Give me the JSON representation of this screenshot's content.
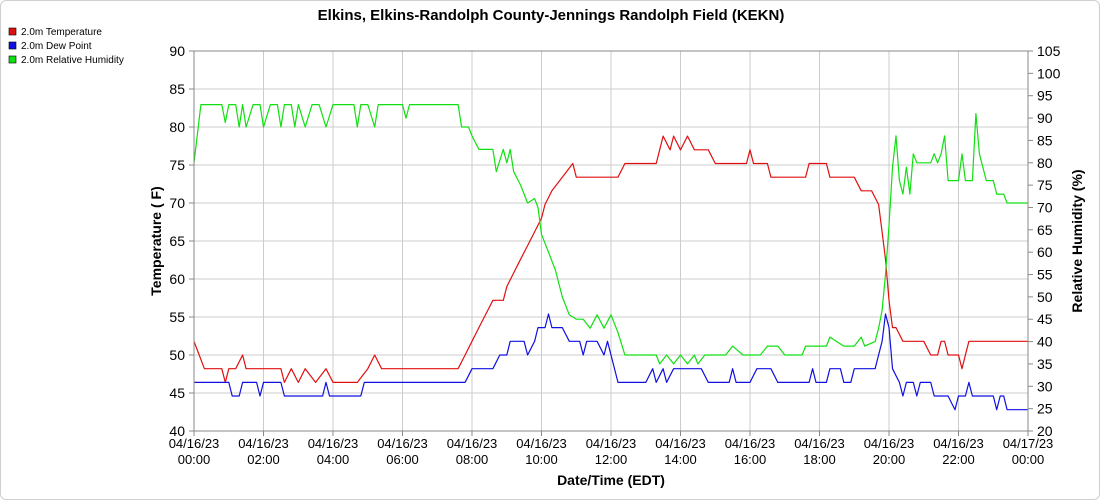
{
  "chart_data": {
    "type": "line",
    "title": "Elkins, Elkins-Randolph County-Jennings Randolph Field (KEKN)",
    "xlabel": "Date/Time (EDT)",
    "ylabel_left": "Temperature ( F)",
    "ylabel_right": "Relative Humidity (%)",
    "x_range_hours": [
      0,
      24
    ],
    "ylim_left": [
      40,
      90
    ],
    "ylim_right": [
      20,
      105
    ],
    "left_ticks": [
      40,
      45,
      50,
      55,
      60,
      65,
      70,
      75,
      80,
      85,
      90
    ],
    "right_ticks": [
      20,
      25,
      30,
      35,
      40,
      45,
      50,
      55,
      60,
      65,
      70,
      75,
      80,
      85,
      90,
      95,
      100,
      105
    ],
    "x_ticks": [
      {
        "hour": 0,
        "date": "04/16/23",
        "time": "00:00"
      },
      {
        "hour": 2,
        "date": "04/16/23",
        "time": "02:00"
      },
      {
        "hour": 4,
        "date": "04/16/23",
        "time": "04:00"
      },
      {
        "hour": 6,
        "date": "04/16/23",
        "time": "06:00"
      },
      {
        "hour": 8,
        "date": "04/16/23",
        "time": "08:00"
      },
      {
        "hour": 10,
        "date": "04/16/23",
        "time": "10:00"
      },
      {
        "hour": 12,
        "date": "04/16/23",
        "time": "12:00"
      },
      {
        "hour": 14,
        "date": "04/16/23",
        "time": "14:00"
      },
      {
        "hour": 16,
        "date": "04/16/23",
        "time": "16:00"
      },
      {
        "hour": 18,
        "date": "04/16/23",
        "time": "18:00"
      },
      {
        "hour": 20,
        "date": "04/16/23",
        "time": "20:00"
      },
      {
        "hour": 22,
        "date": "04/16/23",
        "time": "22:00"
      },
      {
        "hour": 24,
        "date": "04/17/23",
        "time": "00:00"
      }
    ],
    "grid": true,
    "legend_position": "top-left",
    "series": [
      {
        "name": "2.0m Temperature",
        "color": "#e01010",
        "axis": "left",
        "points": [
          [
            0,
            51.8
          ],
          [
            0.15,
            50
          ],
          [
            0.3,
            48.2
          ],
          [
            0.8,
            48.2
          ],
          [
            0.9,
            46.4
          ],
          [
            1.0,
            48.2
          ],
          [
            1.2,
            48.2
          ],
          [
            1.4,
            50
          ],
          [
            1.5,
            48.2
          ],
          [
            2.5,
            48.2
          ],
          [
            2.6,
            46.4
          ],
          [
            2.8,
            48.2
          ],
          [
            3.0,
            46.4
          ],
          [
            3.2,
            48.2
          ],
          [
            3.5,
            46.4
          ],
          [
            3.8,
            48.2
          ],
          [
            4.0,
            46.4
          ],
          [
            4.7,
            46.4
          ],
          [
            5.0,
            48.2
          ],
          [
            5.2,
            50
          ],
          [
            5.4,
            48.2
          ],
          [
            7.6,
            48.2
          ],
          [
            7.8,
            50
          ],
          [
            8.0,
            51.8
          ],
          [
            8.2,
            53.6
          ],
          [
            8.4,
            55.4
          ],
          [
            8.6,
            57.2
          ],
          [
            8.9,
            57.2
          ],
          [
            9.0,
            59
          ],
          [
            9.2,
            60.8
          ],
          [
            9.4,
            62.6
          ],
          [
            9.6,
            64.4
          ],
          [
            9.8,
            66.2
          ],
          [
            10.0,
            68
          ],
          [
            10.1,
            69.8
          ],
          [
            10.3,
            71.6
          ],
          [
            10.6,
            73.4
          ],
          [
            10.9,
            75.2
          ],
          [
            11.0,
            73.4
          ],
          [
            12.2,
            73.4
          ],
          [
            12.4,
            75.2
          ],
          [
            13.3,
            75.2
          ],
          [
            13.4,
            77
          ],
          [
            13.5,
            78.8
          ],
          [
            13.7,
            77
          ],
          [
            13.8,
            78.8
          ],
          [
            14.0,
            77
          ],
          [
            14.2,
            78.8
          ],
          [
            14.4,
            77
          ],
          [
            14.8,
            77
          ],
          [
            15.0,
            75.2
          ],
          [
            15.9,
            75.2
          ],
          [
            16.0,
            77
          ],
          [
            16.1,
            75.2
          ],
          [
            16.5,
            75.2
          ],
          [
            16.6,
            73.4
          ],
          [
            17.0,
            73.4
          ],
          [
            17.6,
            73.4
          ],
          [
            17.7,
            75.2
          ],
          [
            18.2,
            75.2
          ],
          [
            18.3,
            73.4
          ],
          [
            19.0,
            73.4
          ],
          [
            19.2,
            71.6
          ],
          [
            19.5,
            71.6
          ],
          [
            19.7,
            69.8
          ],
          [
            19.8,
            66.2
          ],
          [
            19.9,
            62.6
          ],
          [
            20.0,
            57.2
          ],
          [
            20.1,
            53.6
          ],
          [
            20.2,
            53.6
          ],
          [
            20.4,
            51.8
          ],
          [
            21.0,
            51.8
          ],
          [
            21.2,
            50
          ],
          [
            21.4,
            50
          ],
          [
            21.5,
            51.8
          ],
          [
            21.6,
            51.8
          ],
          [
            21.7,
            50
          ],
          [
            22.0,
            50
          ],
          [
            22.1,
            48.2
          ],
          [
            22.2,
            50
          ],
          [
            22.3,
            51.8
          ],
          [
            24,
            51.8
          ]
        ]
      },
      {
        "name": "2.0m Dew Point",
        "color": "#1010e0",
        "axis": "left",
        "points": [
          [
            0,
            46.4
          ],
          [
            1.0,
            46.4
          ],
          [
            1.1,
            44.6
          ],
          [
            1.3,
            44.6
          ],
          [
            1.4,
            46.4
          ],
          [
            1.8,
            46.4
          ],
          [
            1.9,
            44.6
          ],
          [
            2.0,
            46.4
          ],
          [
            2.5,
            46.4
          ],
          [
            2.6,
            44.6
          ],
          [
            3.2,
            44.6
          ],
          [
            3.7,
            44.6
          ],
          [
            3.8,
            46.4
          ],
          [
            3.9,
            44.6
          ],
          [
            4.8,
            44.6
          ],
          [
            4.9,
            46.4
          ],
          [
            7.8,
            46.4
          ],
          [
            8.0,
            48.2
          ],
          [
            8.6,
            48.2
          ],
          [
            8.8,
            50
          ],
          [
            9.0,
            50
          ],
          [
            9.1,
            51.8
          ],
          [
            9.5,
            51.8
          ],
          [
            9.6,
            50
          ],
          [
            9.8,
            51.8
          ],
          [
            9.9,
            53.6
          ],
          [
            10.1,
            53.6
          ],
          [
            10.2,
            55.4
          ],
          [
            10.3,
            53.6
          ],
          [
            10.6,
            53.6
          ],
          [
            10.8,
            51.8
          ],
          [
            11.1,
            51.8
          ],
          [
            11.2,
            50
          ],
          [
            11.3,
            51.8
          ],
          [
            11.6,
            51.8
          ],
          [
            11.8,
            50
          ],
          [
            11.9,
            51.8
          ],
          [
            12.0,
            50
          ],
          [
            12.2,
            46.4
          ],
          [
            13.0,
            46.4
          ],
          [
            13.2,
            48.2
          ],
          [
            13.3,
            46.4
          ],
          [
            13.5,
            48.2
          ],
          [
            13.6,
            46.4
          ],
          [
            13.8,
            48.2
          ],
          [
            14.6,
            48.2
          ],
          [
            14.8,
            46.4
          ],
          [
            15.4,
            46.4
          ],
          [
            15.5,
            48.2
          ],
          [
            15.6,
            46.4
          ],
          [
            16.0,
            46.4
          ],
          [
            16.2,
            48.2
          ],
          [
            16.6,
            48.2
          ],
          [
            16.8,
            46.4
          ],
          [
            17.7,
            46.4
          ],
          [
            17.8,
            48.2
          ],
          [
            17.9,
            46.4
          ],
          [
            18.2,
            46.4
          ],
          [
            18.3,
            48.2
          ],
          [
            18.6,
            48.2
          ],
          [
            18.7,
            46.4
          ],
          [
            18.9,
            46.4
          ],
          [
            19.0,
            48.2
          ],
          [
            19.6,
            48.2
          ],
          [
            19.7,
            50
          ],
          [
            19.8,
            51.8
          ],
          [
            19.9,
            55.4
          ],
          [
            20.0,
            53.6
          ],
          [
            20.1,
            48.2
          ],
          [
            20.3,
            46.4
          ],
          [
            20.4,
            44.6
          ],
          [
            20.5,
            46.4
          ],
          [
            20.7,
            46.4
          ],
          [
            20.8,
            44.6
          ],
          [
            20.9,
            46.4
          ],
          [
            21.2,
            46.4
          ],
          [
            21.3,
            44.6
          ],
          [
            21.7,
            44.6
          ],
          [
            21.8,
            43.7
          ],
          [
            21.9,
            42.8
          ],
          [
            22.0,
            44.6
          ],
          [
            22.2,
            44.6
          ],
          [
            22.3,
            46.4
          ],
          [
            22.4,
            44.6
          ],
          [
            22.6,
            44.6
          ],
          [
            22.8,
            44.6
          ],
          [
            23.0,
            44.6
          ],
          [
            23.1,
            42.8
          ],
          [
            23.2,
            44.6
          ],
          [
            23.3,
            44.6
          ],
          [
            23.4,
            42.8
          ],
          [
            24,
            42.8
          ]
        ]
      },
      {
        "name": "2.0m Relative Humidity",
        "color": "#10e010",
        "axis": "right",
        "points": [
          [
            0,
            80
          ],
          [
            0.2,
            93
          ],
          [
            0.8,
            93
          ],
          [
            0.9,
            89
          ],
          [
            1.0,
            93
          ],
          [
            1.2,
            93
          ],
          [
            1.3,
            88
          ],
          [
            1.4,
            93
          ],
          [
            1.5,
            88
          ],
          [
            1.7,
            93
          ],
          [
            1.9,
            93
          ],
          [
            2.0,
            88
          ],
          [
            2.2,
            93
          ],
          [
            2.4,
            93
          ],
          [
            2.5,
            88
          ],
          [
            2.6,
            93
          ],
          [
            2.8,
            93
          ],
          [
            2.9,
            88
          ],
          [
            3.0,
            93
          ],
          [
            3.2,
            88
          ],
          [
            3.4,
            93
          ],
          [
            3.6,
            93
          ],
          [
            3.8,
            88
          ],
          [
            4.0,
            93
          ],
          [
            4.6,
            93
          ],
          [
            4.7,
            88
          ],
          [
            4.8,
            93
          ],
          [
            5.0,
            93
          ],
          [
            5.2,
            88
          ],
          [
            5.3,
            93
          ],
          [
            6.0,
            93
          ],
          [
            6.1,
            90
          ],
          [
            6.2,
            93
          ],
          [
            7.6,
            93
          ],
          [
            7.7,
            88
          ],
          [
            7.9,
            88
          ],
          [
            8.0,
            86
          ],
          [
            8.2,
            83
          ],
          [
            8.4,
            83
          ],
          [
            8.6,
            83
          ],
          [
            8.7,
            78
          ],
          [
            8.9,
            83
          ],
          [
            9.0,
            80
          ],
          [
            9.1,
            83
          ],
          [
            9.2,
            78
          ],
          [
            9.4,
            75
          ],
          [
            9.6,
            71
          ],
          [
            9.8,
            72
          ],
          [
            9.9,
            70
          ],
          [
            10.0,
            64
          ],
          [
            10.2,
            60
          ],
          [
            10.4,
            56
          ],
          [
            10.6,
            50
          ],
          [
            10.8,
            46
          ],
          [
            11.0,
            45
          ],
          [
            11.2,
            45
          ],
          [
            11.4,
            43
          ],
          [
            11.6,
            46
          ],
          [
            11.8,
            43
          ],
          [
            12.0,
            46
          ],
          [
            12.2,
            42
          ],
          [
            12.4,
            37
          ],
          [
            13.3,
            37
          ],
          [
            13.4,
            35
          ],
          [
            13.6,
            37
          ],
          [
            13.8,
            35
          ],
          [
            14.0,
            37
          ],
          [
            14.2,
            35
          ],
          [
            14.4,
            37
          ],
          [
            14.5,
            35
          ],
          [
            14.7,
            37
          ],
          [
            15.0,
            37
          ],
          [
            15.3,
            37
          ],
          [
            15.5,
            39
          ],
          [
            15.8,
            37
          ],
          [
            16.3,
            37
          ],
          [
            16.5,
            39
          ],
          [
            16.8,
            39
          ],
          [
            17.0,
            37
          ],
          [
            17.5,
            37
          ],
          [
            17.6,
            39
          ],
          [
            18.2,
            39
          ],
          [
            18.3,
            41
          ],
          [
            18.7,
            39
          ],
          [
            19.0,
            39
          ],
          [
            19.2,
            41
          ],
          [
            19.3,
            39
          ],
          [
            19.6,
            40
          ],
          [
            19.7,
            43
          ],
          [
            19.8,
            47
          ],
          [
            19.9,
            55
          ],
          [
            20.0,
            66
          ],
          [
            20.1,
            79
          ],
          [
            20.2,
            86
          ],
          [
            20.3,
            76
          ],
          [
            20.4,
            73
          ],
          [
            20.5,
            79
          ],
          [
            20.6,
            73
          ],
          [
            20.7,
            82
          ],
          [
            20.8,
            80
          ],
          [
            21.2,
            80
          ],
          [
            21.3,
            82
          ],
          [
            21.4,
            80
          ],
          [
            21.5,
            82
          ],
          [
            21.6,
            86
          ],
          [
            21.7,
            76
          ],
          [
            22.0,
            76
          ],
          [
            22.1,
            82
          ],
          [
            22.2,
            76
          ],
          [
            22.4,
            76
          ],
          [
            22.5,
            91
          ],
          [
            22.6,
            82
          ],
          [
            22.8,
            76
          ],
          [
            23.0,
            76
          ],
          [
            23.1,
            73
          ],
          [
            23.3,
            73
          ],
          [
            23.4,
            71
          ],
          [
            24,
            71
          ]
        ]
      }
    ]
  }
}
